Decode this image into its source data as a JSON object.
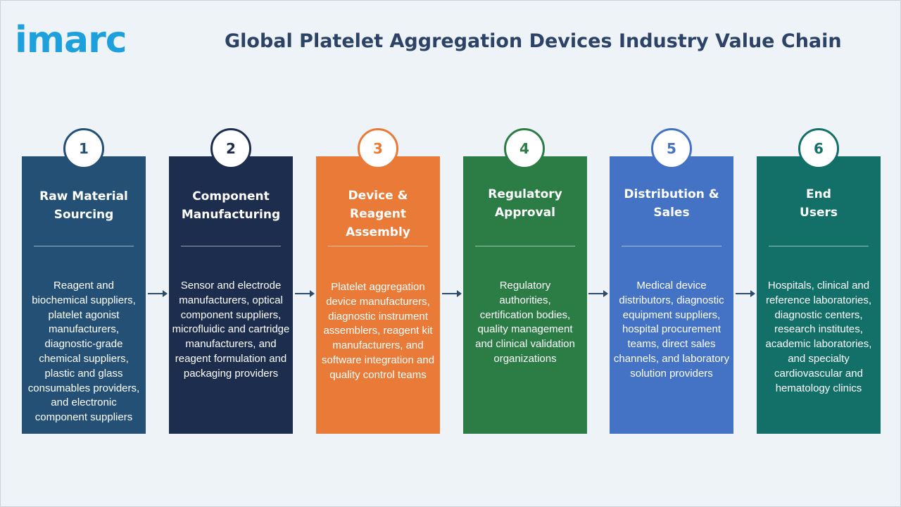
{
  "brand": {
    "logo": "imarc"
  },
  "title": "Global Platelet Aggregation Devices Industry Value Chain",
  "colors": {
    "background": "#eef3f8",
    "title": "#2c4366",
    "logo": "#1ea0dc",
    "arrow": "#2c4a6e"
  },
  "steps": [
    {
      "number": "1",
      "heading": "Raw Material Sourcing",
      "description": "Reagent and biochemical suppliers, platelet agonist manufacturers, diagnostic-grade chemical suppliers, plastic and glass consumables providers, and electronic component suppliers",
      "color": "#245075",
      "number_color": "#245075"
    },
    {
      "number": "2",
      "heading": "Component Manufacturing",
      "description": "Sensor and electrode manufacturers, optical component suppliers, microfluidic and cartridge manufacturers, and reagent formulation and packaging providers",
      "color": "#1c2d4e",
      "number_color": "#1c2d4e"
    },
    {
      "number": "3",
      "heading": "Device & Reagent Assembly",
      "description": "Platelet aggregation device manufacturers, diagnostic instrument assemblers, reagent kit manufacturers, and software integration and quality control teams",
      "color": "#ea7a37",
      "number_color": "#ea7a37"
    },
    {
      "number": "4",
      "heading": "Regulatory Approval",
      "description": "Regulatory authorities, certification bodies, quality management and clinical validation organizations",
      "color": "#2c7c45",
      "number_color": "#2c7c45"
    },
    {
      "number": "5",
      "heading": "Distribution & Sales",
      "description": "Medical device distributors, diagnostic equipment suppliers, hospital procurement teams, direct sales channels, and laboratory solution providers",
      "color": "#4472c4",
      "number_color": "#4472c4"
    },
    {
      "number": "6",
      "heading": "End Users",
      "description": "Hospitals, clinical and reference laboratories, diagnostic centers, research institutes, academic laboratories, and specialty cardiovascular and hematology clinics",
      "color": "#127068",
      "number_color": "#127068"
    }
  ]
}
